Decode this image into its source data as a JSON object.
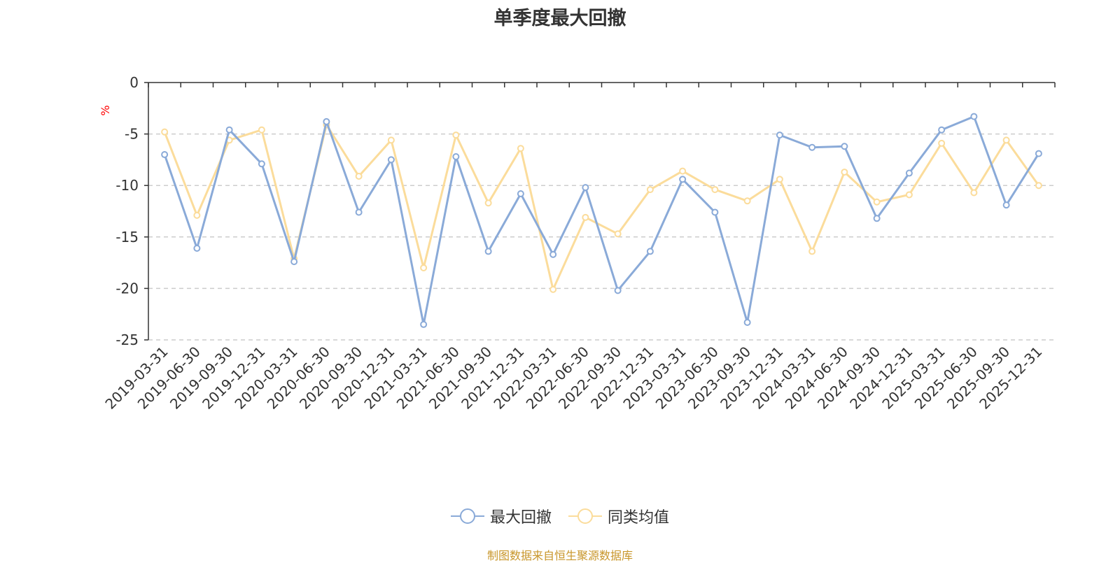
{
  "chart_data": {
    "type": "line",
    "title": "单季度最大回撤",
    "ylabel": "%",
    "ylim": [
      -25,
      0
    ],
    "yticks": [
      0,
      -5,
      -10,
      -15,
      -20,
      -25
    ],
    "grid": true,
    "legend_position": "bottom",
    "categories": [
      "2019-03-31",
      "2019-06-30",
      "2019-09-30",
      "2019-12-31",
      "2020-03-31",
      "2020-06-30",
      "2020-09-30",
      "2020-12-31",
      "2021-03-31",
      "2021-06-30",
      "2021-09-30",
      "2021-12-31",
      "2022-03-31",
      "2022-06-30",
      "2022-09-30",
      "2022-12-31",
      "2023-03-31",
      "2023-06-30",
      "2023-09-30",
      "2023-12-31",
      "2024-03-31",
      "2024-06-30",
      "2024-09-30",
      "2024-12-31",
      "2025-03-31",
      "2025-06-30",
      "2025-09-30",
      "2025-12-31"
    ],
    "series": [
      {
        "name": "最大回撤",
        "color": "#8aaad8",
        "values": [
          -7.0,
          -16.1,
          -4.6,
          -7.9,
          -17.4,
          -3.8,
          -12.6,
          -7.5,
          -23.5,
          -7.2,
          -16.4,
          -10.8,
          -16.7,
          -10.2,
          -20.2,
          -16.4,
          -9.4,
          -12.6,
          -23.3,
          -5.1,
          -6.3,
          -6.2,
          -13.2,
          -8.8,
          -4.6,
          -3.3,
          -11.9,
          -6.9
        ]
      },
      {
        "name": "同类均值",
        "color": "#fbdc9b",
        "values": [
          -4.8,
          -12.9,
          -5.6,
          -4.6,
          -17.1,
          -4.1,
          -9.1,
          -5.6,
          -18.0,
          -5.1,
          -11.7,
          -6.4,
          -20.1,
          -13.1,
          -14.7,
          -10.4,
          -8.6,
          -10.4,
          -11.5,
          -9.4,
          -16.4,
          -8.7,
          -11.6,
          -10.9,
          -5.9,
          -10.7,
          -5.6,
          -10.0
        ]
      }
    ]
  },
  "legend": {
    "items": [
      {
        "label": "最大回撤"
      },
      {
        "label": "同类均值"
      }
    ]
  },
  "source_note": "制图数据来自恒生聚源数据库"
}
